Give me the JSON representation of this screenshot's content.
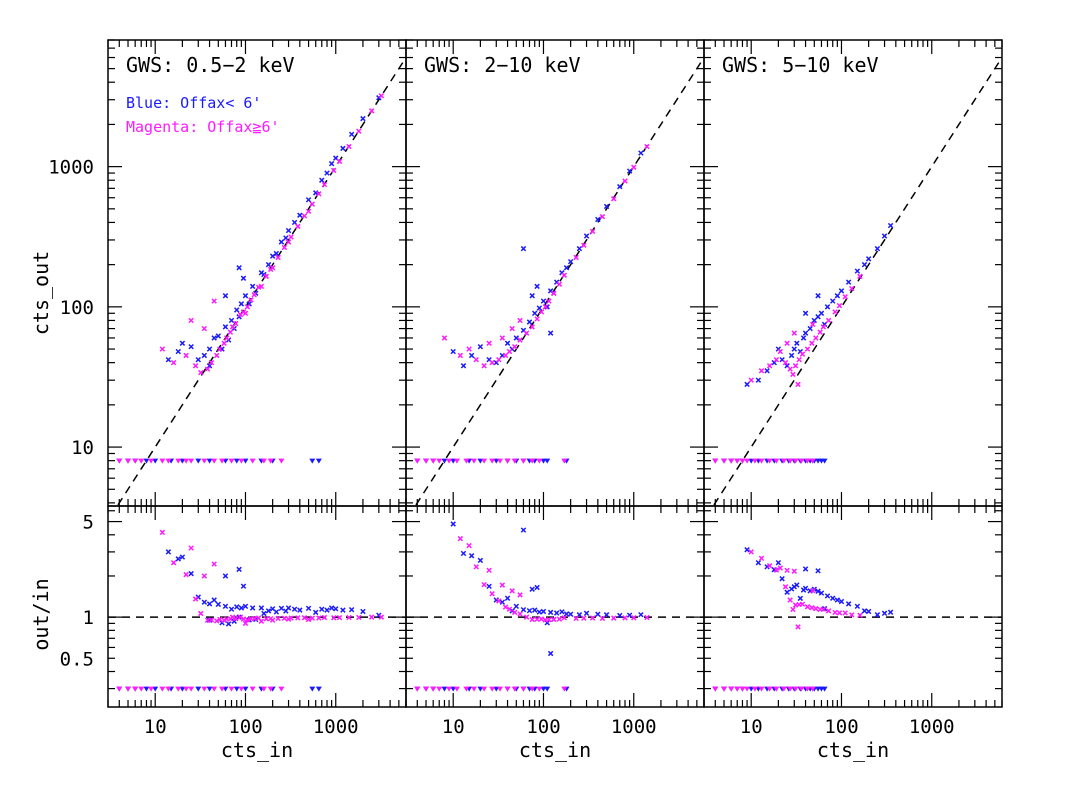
{
  "chart_data": {
    "type": "scatter",
    "x_scale": "log",
    "y_scale_top": "log",
    "y_scale_bottom": "log",
    "xlim": [
      3,
      6000
    ],
    "ylim_top": [
      3.8,
      8000
    ],
    "ylim_bottom": [
      0.22,
      6.5
    ],
    "xlabel": "cts_in",
    "ylabel_top": "cts_out",
    "ylabel_bottom": "out/in",
    "x_ticks": [
      "10",
      "100",
      "1000"
    ],
    "y_ticks_top": [
      "10",
      "100",
      "1000"
    ],
    "y_ticks_bottom": [
      "0.5",
      "1",
      "5"
    ],
    "legend": {
      "blue_label": "Blue: Offax< 6'",
      "magenta_label": "Magenta: Offax≧6'",
      "blue_color": "#1a1aff",
      "magenta_color": "#ff1aff"
    },
    "reference_lines": {
      "top": "y = x (dashed)",
      "bottom": "y = 1 (dashed)"
    },
    "upper_limit_level_top": 8,
    "upper_limit_level_bottom": 0.3,
    "panels": [
      {
        "title": "GWS: 0.5−2 keV",
        "series": [
          {
            "name": "Blue: Offax< 6'",
            "color": "#1a1aff",
            "points": [
              [
                14,
                42
              ],
              [
                18,
                48
              ],
              [
                20,
                55
              ],
              [
                25,
                52
              ],
              [
                30,
                42
              ],
              [
                35,
                45
              ],
              [
                40,
                50
              ],
              [
                45,
                60
              ],
              [
                50,
                62
              ],
              [
                60,
                72
              ],
              [
                70,
                80
              ],
              [
                80,
                95
              ],
              [
                90,
                105
              ],
              [
                100,
                120
              ],
              [
                120,
                140
              ],
              [
                150,
                175
              ],
              [
                180,
                200
              ],
              [
                200,
                230
              ],
              [
                250,
                290
              ],
              [
                300,
                350
              ],
              [
                400,
                450
              ],
              [
                500,
                580
              ],
              [
                700,
                800
              ],
              [
                900,
                1050
              ],
              [
                1200,
                1350
              ],
              [
                1500,
                1700
              ],
              [
                2000,
                2200
              ],
              [
                3000,
                3100
              ],
              [
                40,
                38
              ],
              [
                55,
                50
              ],
              [
                65,
                58
              ],
              [
                75,
                70
              ],
              [
                85,
                85
              ],
              [
                110,
                105
              ],
              [
                130,
                125
              ],
              [
                160,
                170
              ],
              [
                85,
                190
              ],
              [
                95,
                160
              ],
              [
                60,
                120
              ],
              [
                220,
                240
              ],
              [
                280,
                310
              ],
              [
                350,
                400
              ],
              [
                600,
                650
              ],
              [
                800,
                900
              ],
              [
                1000,
                1150
              ]
            ],
            "limits": [
              4,
              5,
              6,
              8,
              10,
              15,
              20,
              30,
              40,
              60,
              80,
              100,
              150,
              200,
              550,
              650
            ]
          },
          {
            "name": "Magenta: Offax≧6'",
            "color": "#ff1aff",
            "points": [
              [
                12,
                50
              ],
              [
                16,
                40
              ],
              [
                22,
                45
              ],
              [
                28,
                38
              ],
              [
                32,
                34
              ],
              [
                38,
                36
              ],
              [
                42,
                40
              ],
              [
                48,
                45
              ],
              [
                52,
                50
              ],
              [
                58,
                55
              ],
              [
                62,
                60
              ],
              [
                68,
                66
              ],
              [
                72,
                72
              ],
              [
                78,
                76
              ],
              [
                88,
                88
              ],
              [
                95,
                92
              ],
              [
                105,
                100
              ],
              [
                115,
                112
              ],
              [
                125,
                122
              ],
              [
                140,
                138
              ],
              [
                170,
                165
              ],
              [
                190,
                185
              ],
              [
                230,
                225
              ],
              [
                270,
                265
              ],
              [
                320,
                315
              ],
              [
                380,
                375
              ],
              [
                450,
                445
              ],
              [
                550,
                540
              ],
              [
                650,
                640
              ],
              [
                750,
                745
              ],
              [
                950,
                940
              ],
              [
                1100,
                1090
              ],
              [
                1400,
                1390
              ],
              [
                1800,
                1790
              ],
              [
                2500,
                2500
              ],
              [
                3200,
                3200
              ],
              [
                25,
                80
              ],
              [
                45,
                110
              ],
              [
                35,
                70
              ],
              [
                100,
                90
              ],
              [
                150,
                140
              ],
              [
                200,
                190
              ],
              [
                300,
                290
              ],
              [
                500,
                480
              ]
            ],
            "limits": [
              4,
              5,
              6,
              7,
              9,
              12,
              14,
              18,
              22,
              25,
              35,
              45,
              55,
              70,
              90,
              120,
              160,
              190,
              250
            ]
          }
        ]
      },
      {
        "title": "GWS: 2−10 keV",
        "series": [
          {
            "name": "Blue: Offax< 6'",
            "color": "#1a1aff",
            "points": [
              [
                10,
                48
              ],
              [
                13,
                38
              ],
              [
                16,
                45
              ],
              [
                20,
                52
              ],
              [
                25,
                42
              ],
              [
                30,
                40
              ],
              [
                35,
                45
              ],
              [
                40,
                55
              ],
              [
                45,
                50
              ],
              [
                50,
                60
              ],
              [
                60,
                68
              ],
              [
                70,
                78
              ],
              [
                80,
                90
              ],
              [
                90,
                98
              ],
              [
                100,
                110
              ],
              [
                120,
                130
              ],
              [
                140,
                150
              ],
              [
                160,
                175
              ],
              [
                200,
                210
              ],
              [
                250,
                260
              ],
              [
                300,
                320
              ],
              [
                400,
                420
              ],
              [
                500,
                520
              ],
              [
                700,
                720
              ],
              [
                900,
                930
              ],
              [
                1200,
                1250
              ],
              [
                60,
                260
              ],
              [
                120,
                65
              ],
              [
                75,
                120
              ],
              [
                85,
                140
              ],
              [
                110,
                100
              ],
              [
                130,
                125
              ],
              [
                180,
                190
              ]
            ],
            "limits": [
              4,
              5,
              6,
              8,
              10,
              15,
              20,
              30,
              40,
              50,
              60,
              70,
              80,
              100,
              110,
              180
            ]
          },
          {
            "name": "Magenta: Offax≧6'",
            "color": "#ff1aff",
            "points": [
              [
                8,
                60
              ],
              [
                12,
                45
              ],
              [
                15,
                50
              ],
              [
                18,
                42
              ],
              [
                22,
                38
              ],
              [
                27,
                40
              ],
              [
                32,
                42
              ],
              [
                38,
                45
              ],
              [
                42,
                48
              ],
              [
                48,
                52
              ],
              [
                55,
                58
              ],
              [
                65,
                65
              ],
              [
                75,
                72
              ],
              [
                85,
                82
              ],
              [
                95,
                92
              ],
              [
                105,
                100
              ],
              [
                115,
                110
              ],
              [
                130,
                125
              ],
              [
                150,
                145
              ],
              [
                170,
                168
              ],
              [
                230,
                225
              ],
              [
                280,
                275
              ],
              [
                350,
                345
              ],
              [
                450,
                440
              ],
              [
                600,
                590
              ],
              [
                800,
                790
              ],
              [
                1000,
                990
              ],
              [
                1400,
                1390
              ],
              [
                25,
                55
              ],
              [
                35,
                60
              ],
              [
                45,
                70
              ],
              [
                55,
                80
              ]
            ],
            "limits": [
              4,
              5,
              6,
              7,
              9,
              11,
              14,
              17,
              22,
              27,
              33,
              40,
              48,
              60,
              75,
              90,
              170
            ]
          }
        ]
      },
      {
        "title": "GWS: 5−10 keV",
        "series": [
          {
            "name": "Blue: Offax< 6'",
            "color": "#1a1aff",
            "points": [
              [
                9,
                28
              ],
              [
                12,
                30
              ],
              [
                15,
                35
              ],
              [
                18,
                40
              ],
              [
                20,
                50
              ],
              [
                22,
                42
              ],
              [
                25,
                38
              ],
              [
                28,
                45
              ],
              [
                30,
                50
              ],
              [
                32,
                55
              ],
              [
                35,
                48
              ],
              [
                38,
                60
              ],
              [
                40,
                65
              ],
              [
                45,
                70
              ],
              [
                50,
                80
              ],
              [
                55,
                85
              ],
              [
                60,
                90
              ],
              [
                70,
                100
              ],
              [
                80,
                110
              ],
              [
                90,
                120
              ],
              [
                100,
                130
              ],
              [
                120,
                150
              ],
              [
                150,
                180
              ],
              [
                180,
                200
              ],
              [
                200,
                220
              ],
              [
                250,
                260
              ],
              [
                300,
                320
              ],
              [
                350,
                380
              ],
              [
                40,
                90
              ],
              [
                55,
                120
              ],
              [
                65,
                75
              ]
            ],
            "limits": [
              4,
              5,
              6,
              7,
              8,
              10,
              12,
              15,
              18,
              22,
              26,
              30,
              35,
              40,
              45,
              50,
              55,
              60,
              65
            ]
          },
          {
            "name": "Magenta: Offax≧6'",
            "color": "#ff1aff",
            "points": [
              [
                10,
                30
              ],
              [
                13,
                35
              ],
              [
                16,
                38
              ],
              [
                19,
                42
              ],
              [
                21,
                48
              ],
              [
                24,
                40
              ],
              [
                27,
                36
              ],
              [
                29,
                33
              ],
              [
                31,
                38
              ],
              [
                34,
                42
              ],
              [
                37,
                46
              ],
              [
                42,
                50
              ],
              [
                47,
                55
              ],
              [
                52,
                60
              ],
              [
                58,
                66
              ],
              [
                63,
                72
              ],
              [
                72,
                80
              ],
              [
                85,
                92
              ],
              [
                95,
                102
              ],
              [
                110,
                118
              ],
              [
                130,
                135
              ],
              [
                160,
                165
              ],
              [
                25,
                55
              ],
              [
                30,
                65
              ],
              [
                48,
                75
              ],
              [
                33,
                28
              ]
            ],
            "limits": [
              4,
              5,
              6,
              7,
              8,
              9,
              11,
              13,
              16,
              19,
              23,
              27,
              31,
              36,
              42,
              48
            ]
          }
        ]
      }
    ]
  }
}
